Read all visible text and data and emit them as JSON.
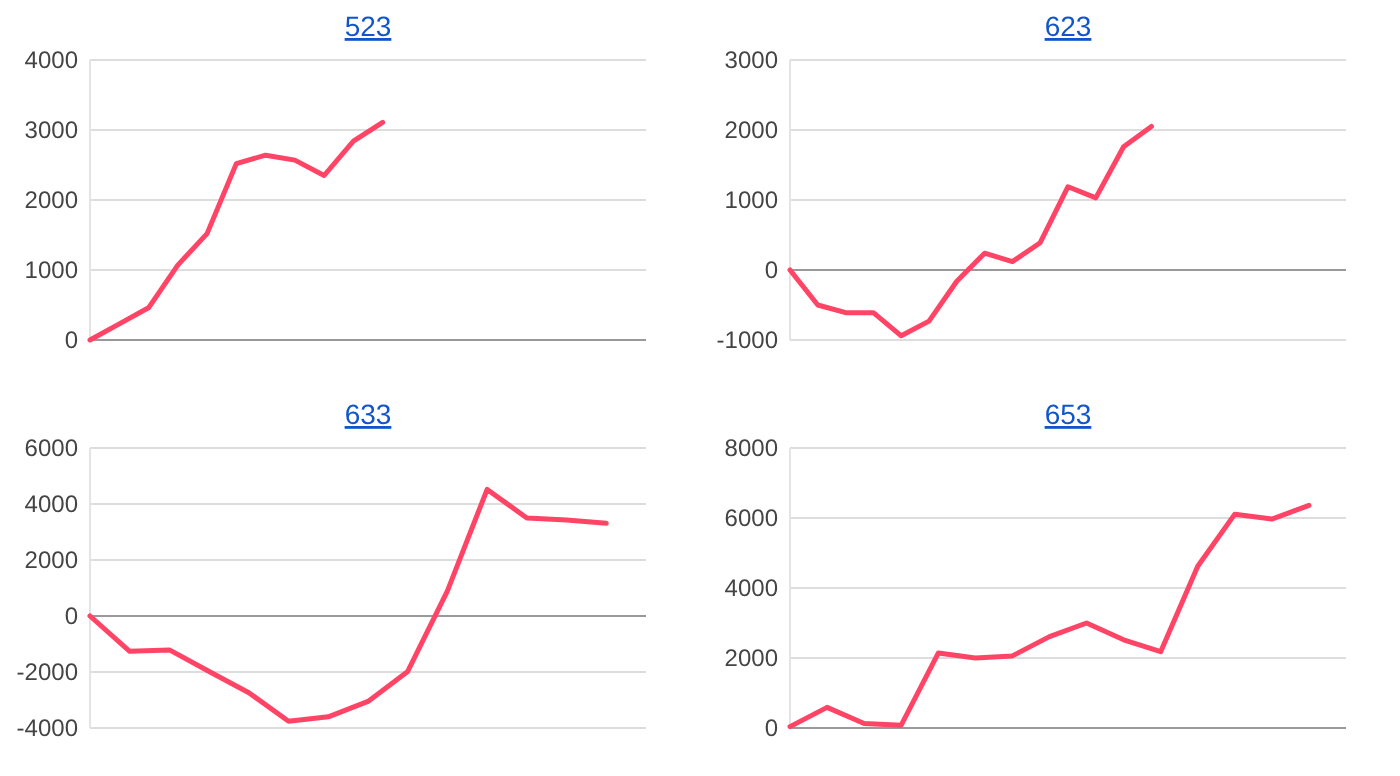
{
  "chart_data": [
    {
      "type": "line",
      "title": "523",
      "categories": [
        null,
        null,
        null,
        null,
        null,
        null,
        null,
        null,
        null,
        null,
        null,
        null,
        null,
        null,
        null,
        null,
        null,
        null,
        null,
        null
      ],
      "series": [
        {
          "color": "#ff4466",
          "values": [
            0,
            230,
            460,
            1070,
            1520,
            2520,
            2640,
            2570,
            2350,
            2840,
            3110,
            null,
            null,
            null,
            null,
            null,
            null,
            null,
            null,
            null
          ]
        }
      ],
      "ylim": [
        0,
        4000
      ],
      "yticks": [
        0,
        1000,
        2000,
        3000,
        4000
      ],
      "grid": "y",
      "marker": "none"
    },
    {
      "type": "line",
      "title": "623",
      "categories": [
        null,
        null,
        null,
        null,
        null,
        null,
        null,
        null,
        null,
        null,
        null,
        null,
        null,
        null,
        null,
        null,
        null,
        null,
        null,
        null,
        null
      ],
      "series": [
        {
          "color": "#ff4466",
          "values": [
            0,
            -500,
            -610,
            -610,
            -940,
            -730,
            -160,
            240,
            120,
            390,
            1190,
            1030,
            1760,
            2050,
            null,
            null,
            null,
            null,
            null,
            null,
            null
          ]
        }
      ],
      "ylim": [
        -1000,
        3000
      ],
      "yticks": [
        -1000,
        0,
        1000,
        2000,
        3000
      ],
      "grid": "y",
      "marker": "none"
    },
    {
      "type": "line",
      "title": "633",
      "categories": [
        null,
        null,
        null,
        null,
        null,
        null,
        null,
        null,
        null,
        null,
        null,
        null,
        null,
        null,
        null
      ],
      "series": [
        {
          "color": "#ff4466",
          "values": [
            0,
            -1260,
            -1210,
            -1980,
            -2740,
            -3760,
            -3600,
            -3050,
            -1980,
            900,
            4520,
            3500,
            3430,
            3310,
            null
          ]
        }
      ],
      "ylim": [
        -4000,
        6000
      ],
      "yticks": [
        -4000,
        -2000,
        0,
        2000,
        4000,
        6000
      ],
      "grid": "y",
      "marker": "none"
    },
    {
      "type": "line",
      "title": "653",
      "categories": [
        null,
        null,
        null,
        null,
        null,
        null,
        null,
        null,
        null,
        null,
        null,
        null,
        null,
        null,
        null,
        null
      ],
      "series": [
        {
          "color": "#ff4466",
          "values": [
            40,
            590,
            130,
            80,
            2140,
            2000,
            2060,
            2610,
            3000,
            2520,
            2180,
            4620,
            6110,
            5970,
            6360,
            null
          ]
        }
      ],
      "ylim": [
        0,
        8000
      ],
      "yticks": [
        0,
        2000,
        4000,
        6000,
        8000
      ],
      "grid": "y",
      "marker": "none"
    }
  ]
}
